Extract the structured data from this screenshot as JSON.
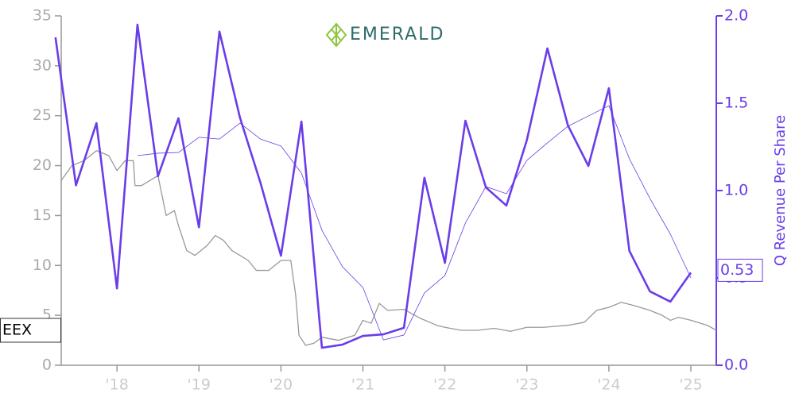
{
  "chart_data": {
    "type": "line",
    "logo": "EMERALD",
    "y2label": "Q Revenue Per Share",
    "xlim": [
      2017.32,
      2025.31
    ],
    "xticks": [
      {
        "value": 2018,
        "label": "'18"
      },
      {
        "value": 2019,
        "label": "'19"
      },
      {
        "value": 2020,
        "label": "'20"
      },
      {
        "value": 2021,
        "label": "'21"
      },
      {
        "value": 2022,
        "label": "'22"
      },
      {
        "value": 2023,
        "label": "'23"
      },
      {
        "value": 2024,
        "label": "'24"
      },
      {
        "value": 2025,
        "label": "'25"
      }
    ],
    "ylim": [
      0,
      35
    ],
    "yticks": [
      0,
      5,
      10,
      15,
      20,
      25,
      30,
      35
    ],
    "y2lim": [
      0,
      2
    ],
    "y2ticks": [
      {
        "value": 0,
        "label": "0.0"
      },
      {
        "value": 0.5,
        "label": "0.5"
      },
      {
        "value": 1,
        "label": "1.0"
      },
      {
        "value": 1.5,
        "label": "1.5"
      },
      {
        "value": 2,
        "label": "2.0"
      }
    ],
    "series": [
      {
        "name": "EEX",
        "color": "#999999",
        "width": 1.3,
        "x": [
          2017.32,
          2017.45,
          2017.6,
          2017.75,
          2017.9,
          2018.0,
          2018.1,
          2018.2,
          2018.22,
          2018.3,
          2018.4,
          2018.5,
          2018.55,
          2018.6,
          2018.7,
          2018.75,
          2018.85,
          2018.95,
          2019.1,
          2019.2,
          2019.3,
          2019.4,
          2019.5,
          2019.6,
          2019.7,
          2019.85,
          2020.0,
          2020.12,
          2020.18,
          2020.22,
          2020.3,
          2020.4,
          2020.5,
          2020.7,
          2020.9,
          2021.0,
          2021.1,
          2021.2,
          2021.3,
          2021.5,
          2021.7,
          2021.9,
          2022.0,
          2022.2,
          2022.4,
          2022.6,
          2022.8,
          2023.0,
          2023.2,
          2023.5,
          2023.7,
          2023.85,
          2024.0,
          2024.15,
          2024.3,
          2024.5,
          2024.65,
          2024.75,
          2024.85,
          2025.0,
          2025.2,
          2025.31
        ],
        "values": [
          18.5,
          20,
          20.5,
          21.5,
          21,
          19.5,
          20.5,
          20.5,
          18,
          18,
          18.5,
          19,
          17,
          15,
          15.5,
          14,
          11.5,
          11,
          12,
          13,
          12.5,
          11.5,
          11,
          10.5,
          9.5,
          9.5,
          10.5,
          10.5,
          7,
          3,
          2,
          2.2,
          2.8,
          2.5,
          3,
          4.5,
          4.2,
          6.2,
          5.5,
          5.6,
          4.7,
          4,
          3.8,
          3.5,
          3.5,
          3.7,
          3.4,
          3.8,
          3.8,
          4,
          4.3,
          5.5,
          5.8,
          6.3,
          6,
          5.5,
          5,
          4.5,
          4.8,
          4.5,
          4,
          3.5
        ]
      },
      {
        "color": "#6a3de8",
        "width": 2.6,
        "axis": "y2",
        "x": [
          2017.25,
          2017.5,
          2017.75,
          2018.0,
          2018.25,
          2018.5,
          2018.75,
          2019.0,
          2019.25,
          2019.5,
          2019.75,
          2020.0,
          2020.25,
          2020.5,
          2020.75,
          2021.0,
          2021.25,
          2021.5,
          2021.75,
          2022.0,
          2022.25,
          2022.5,
          2022.75,
          2023.0,
          2023.25,
          2023.5,
          2023.75,
          2024.0,
          2024.25,
          2024.5,
          2024.75,
          2025.0
        ],
        "values": [
          1.877,
          1.03,
          1.386,
          0.44,
          1.95,
          1.082,
          1.414,
          0.79,
          1.91,
          1.418,
          1.045,
          0.627,
          1.395,
          0.1,
          0.118,
          0.168,
          0.177,
          0.214,
          1.073,
          0.586,
          1.4,
          1.018,
          0.914,
          1.29,
          1.814,
          1.373,
          1.141,
          1.586,
          0.655,
          0.423,
          0.364,
          0.53
        ]
      },
      {
        "color": "#6a3de8",
        "width": 0.8,
        "axis": "y2",
        "x": [
          2018.25,
          2018.5,
          2018.75,
          2019.0,
          2019.25,
          2019.5,
          2019.75,
          2020.0,
          2020.25,
          2020.5,
          2020.75,
          2021.0,
          2021.25,
          2021.5,
          2021.75,
          2022.0,
          2022.25,
          2022.5,
          2022.75,
          2023.0,
          2023.25,
          2023.5,
          2023.75,
          2024.0,
          2024.25,
          2024.5,
          2024.75,
          2025.0
        ],
        "values": [
          1.2,
          1.214,
          1.218,
          1.305,
          1.295,
          1.386,
          1.295,
          1.255,
          1.1,
          0.773,
          0.564,
          0.445,
          0.145,
          0.173,
          0.414,
          0.514,
          0.814,
          1.023,
          0.982,
          1.173,
          1.273,
          1.368,
          1.427,
          1.486,
          1.182,
          0.955,
          0.75,
          0.5
        ]
      }
    ]
  }
}
